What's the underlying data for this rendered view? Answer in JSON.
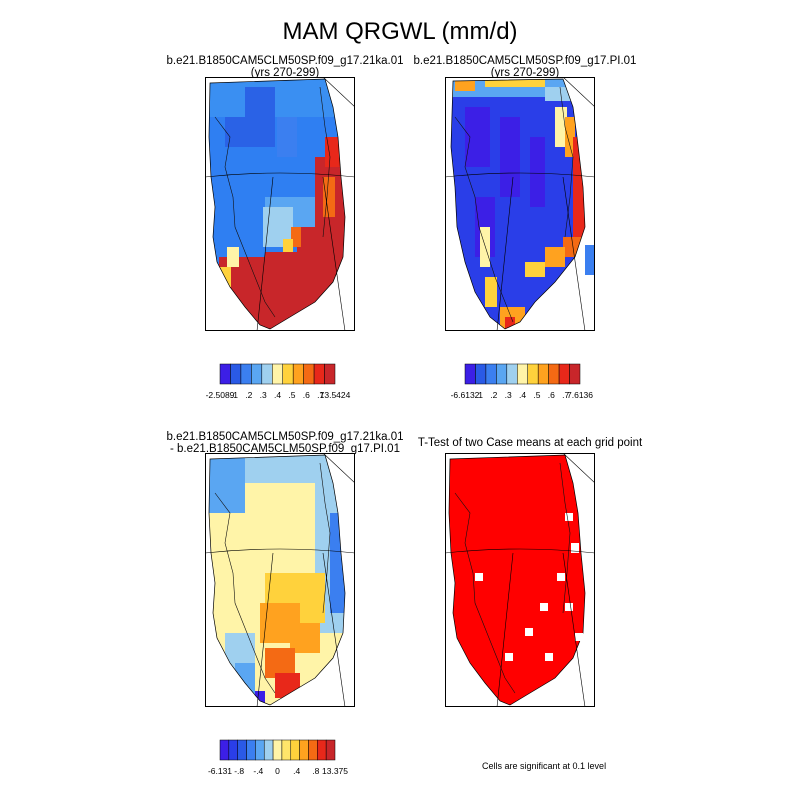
{
  "title": "MAM QRGWL (mm/d)",
  "panels": [
    {
      "title_line1": "b.e21.B1850CAM5CLM50SP.f09_g17.21ka.01",
      "title_line2": "(yrs 270-299)",
      "fill": "blue-red"
    },
    {
      "title_line1": "b.e21.B1850CAM5CLM50SP.f09_g17.PI.01",
      "title_line2": "(yrs 270-299)",
      "fill": "deepblue"
    },
    {
      "title_line1": "b.e21.B1850CAM5CLM50SP.f09_g17.21ka.01",
      "title_line2": "- b.e21.B1850CAM5CLM50SP.f09_g17.PI.01",
      "fill": "diff"
    },
    {
      "title_line1": "T-Test of two Case means at each grid point",
      "title_line2": "",
      "fill": "ttest"
    }
  ],
  "colorbars": [
    {
      "colors": [
        "#3c1fe6",
        "#2a5ae6",
        "#3b7ff0",
        "#5aa6f2",
        "#9fd0ef",
        "#fff4a8",
        "#ffd23c",
        "#ffa21f",
        "#f46a14",
        "#e8281a",
        "#c8262a"
      ],
      "labels": [
        "-2.5089",
        ".1",
        ".2",
        ".3",
        ".4",
        ".5",
        ".6",
        ".7",
        "13.5424"
      ]
    },
    {
      "colors": [
        "#3c1fe6",
        "#2a5ae6",
        "#3b7ff0",
        "#5aa6f2",
        "#9fd0ef",
        "#fff4a8",
        "#ffd23c",
        "#ffa21f",
        "#f46a14",
        "#e8281a",
        "#c8262a"
      ],
      "labels": [
        "-6.6132",
        ".1",
        ".2",
        ".3",
        ".4",
        ".5",
        ".6",
        ".7",
        "7.6136"
      ]
    },
    {
      "colors": [
        "#3c1fe6",
        "#2a3ee8",
        "#2a5ae6",
        "#3b7ff0",
        "#5aa6f2",
        "#9fd0ef",
        "#fff4a8",
        "#ffe56a",
        "#ffd23c",
        "#ffa21f",
        "#f46a14",
        "#e8281a",
        "#c8262a"
      ],
      "labels": [
        "-6.131",
        "-.8",
        "-.4",
        "0",
        ".4",
        ".8",
        "13.375"
      ]
    }
  ],
  "significance_note": "Cells are significant at 0.1 level"
}
